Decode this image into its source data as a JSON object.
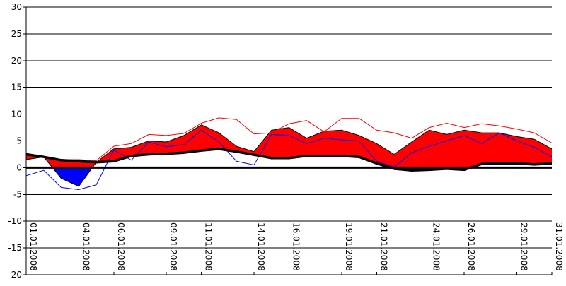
{
  "chart_data": {
    "type": "area",
    "title": "",
    "xlabel": "",
    "ylabel": "",
    "ylim": [
      -20,
      30
    ],
    "yticks": [
      30,
      25,
      20,
      15,
      10,
      5,
      0,
      -5,
      -10,
      -15,
      -20
    ],
    "xlim": [
      "01.01.2008",
      "31.01.2008"
    ],
    "xtick_labels": [
      "01.01.2008",
      "04.01.2008",
      "06.01.2008",
      "09.01.2008",
      "11.01.2008",
      "14.01.2008",
      "16.01.2008",
      "19.01.2008",
      "21.01.2008",
      "24.01.2008",
      "26.01.2008",
      "29.01.2008",
      "31.01.2008"
    ],
    "grid": "horizontal",
    "x": [
      "01.01.2008",
      "02.01.2008",
      "03.01.2008",
      "04.01.2008",
      "05.01.2008",
      "06.01.2008",
      "07.01.2008",
      "08.01.2008",
      "09.01.2008",
      "10.01.2008",
      "11.01.2008",
      "12.01.2008",
      "13.01.2008",
      "14.01.2008",
      "15.01.2008",
      "16.01.2008",
      "17.01.2008",
      "18.01.2008",
      "19.01.2008",
      "20.01.2008",
      "21.01.2008",
      "22.01.2008",
      "23.01.2008",
      "24.01.2008",
      "25.01.2008",
      "26.01.2008",
      "27.01.2008",
      "28.01.2008",
      "29.01.2008",
      "30.01.2008",
      "31.01.2008"
    ],
    "series": [
      {
        "role": "filled-area",
        "values": [
          1.5,
          2.0,
          -2.0,
          -3.5,
          1.0,
          3.5,
          3.8,
          5.0,
          4.8,
          6.0,
          8.0,
          6.5,
          4.0,
          3.0,
          7.0,
          7.5,
          5.5,
          6.8,
          7.0,
          6.0,
          4.5,
          2.5,
          4.8,
          7.0,
          6.2,
          7.0,
          6.5,
          6.5,
          5.8,
          5.3,
          3.5
        ],
        "color": "#ff0000",
        "negative_color": "#0000ff"
      },
      {
        "role": "upper-thin-line",
        "values": [
          2.5,
          2.0,
          1.5,
          1.5,
          1.3,
          4.0,
          4.5,
          6.2,
          6.0,
          6.4,
          8.3,
          9.3,
          9.0,
          6.3,
          6.5,
          8.2,
          8.8,
          6.7,
          9.2,
          9.2,
          7.0,
          6.5,
          5.5,
          7.5,
          8.3,
          7.5,
          8.2,
          7.8,
          7.2,
          6.5,
          4.6
        ],
        "color": "#ff0000"
      },
      {
        "role": "lower-thin-line",
        "values": [
          -1.5,
          -0.5,
          -3.7,
          -4.1,
          -3.2,
          3.3,
          1.4,
          4.8,
          3.9,
          4.3,
          7.0,
          4.8,
          1.2,
          0.5,
          6.2,
          6.0,
          4.5,
          5.5,
          5.2,
          5.0,
          1.2,
          0.1,
          2.8,
          4.0,
          5.0,
          6.0,
          4.5,
          6.5,
          5.0,
          3.8,
          2.0
        ],
        "color": "#0000ff"
      },
      {
        "role": "thick-line",
        "values": [
          2.5,
          2.0,
          1.4,
          1.2,
          1.0,
          1.2,
          2.2,
          2.5,
          2.6,
          2.8,
          3.2,
          3.5,
          3.0,
          2.4,
          1.8,
          1.8,
          2.2,
          2.2,
          2.2,
          2.0,
          0.8,
          -0.2,
          -0.5,
          -0.4,
          -0.2,
          -0.4,
          0.7,
          0.8,
          0.8,
          0.6,
          0.8
        ],
        "color": "#000000"
      }
    ],
    "reference_line": {
      "y": 0,
      "color": "#000000"
    }
  }
}
